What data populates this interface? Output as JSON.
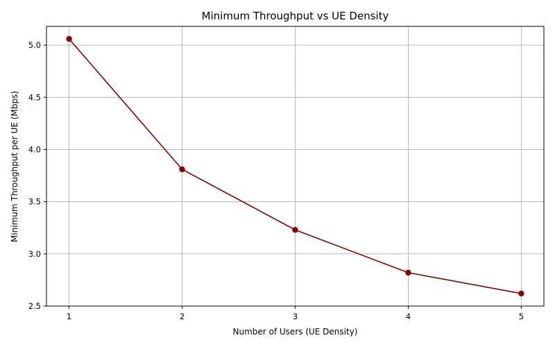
{
  "chart_data": {
    "type": "line",
    "title": "Minimum Throughput vs UE Density",
    "xlabel": "Number of Users (UE Density)",
    "ylabel": "Minimum Throughput per UE (Mbps)",
    "x": [
      1,
      2,
      3,
      4,
      5
    ],
    "series": [
      {
        "values": [
          5.06,
          3.81,
          3.23,
          2.82,
          2.62
        ]
      }
    ],
    "xlim": [
      0.8,
      5.2
    ],
    "ylim": [
      2.5,
      5.18
    ],
    "xticks": [
      1,
      2,
      3,
      4,
      5
    ],
    "yticks": [
      2.5,
      3.0,
      3.5,
      4.0,
      4.5,
      5.0
    ],
    "xtick_labels": [
      "1",
      "2",
      "3",
      "4",
      "5"
    ],
    "ytick_labels": [
      "2.5",
      "3.0",
      "3.5",
      "4.0",
      "4.5",
      "5.0"
    ],
    "grid": true,
    "line_color": "#8b0000",
    "marker": "circle"
  }
}
